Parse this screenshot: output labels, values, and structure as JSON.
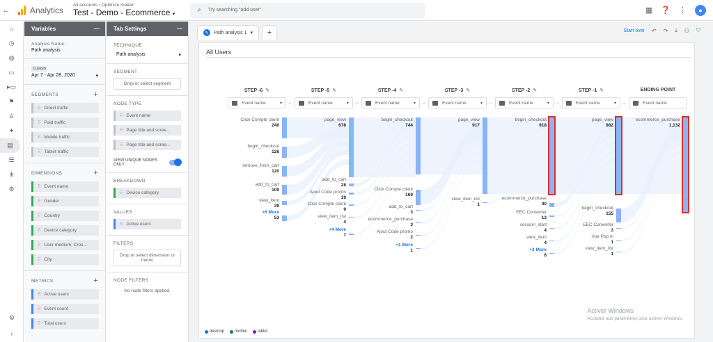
{
  "topbar": {
    "app_name": "Analytics",
    "breadcrumb": "All accounts › Optimize matter",
    "property": "Test - Demo - Ecommerce",
    "search_placeholder": "Try searching \"add user\"",
    "avatar_letter": "👤"
  },
  "variables": {
    "title": "Variables",
    "analysis_name_label": "Analysis Name:",
    "analysis_name": "Path analysis",
    "date_custom": "Custom",
    "date_range": "Apr 7 - Apr 28, 2020",
    "segments_title": "SEGMENTS",
    "segments": [
      "Direct traffic",
      "Paid traffic",
      "Mobile traffic",
      "Tablet traffic"
    ],
    "dimensions_title": "DIMENSIONS",
    "dimensions": [
      "Event name",
      "Gender",
      "Country",
      "Device category",
      "User medium: Cros...",
      "City"
    ],
    "metrics_title": "METRICS",
    "metrics": [
      "Active users",
      "Event count",
      "Total users"
    ]
  },
  "tab_settings": {
    "title": "Tab Settings",
    "technique_label": "TECHNIQUE",
    "technique": "Path analysis",
    "segment_label": "SEGMENT",
    "segment_drop": "Drop or select segment",
    "node_type_label": "NODE TYPE",
    "node_types": [
      "Event name",
      "Page title and scree...",
      "Page title and scree..."
    ],
    "view_unique_label": "VIEW UNIQUE NODES ONLY",
    "breakdown_label": "BREAKDOWN",
    "breakdown": "Device category",
    "values_label": "VALUES",
    "values": "Active users",
    "filters_label": "FILTERS",
    "filters_drop": "Drop or select dimension or metric",
    "node_filters_label": "NODE FILTERS",
    "node_filters_text": "No node filters applied."
  },
  "canvas": {
    "tab_label": "Path analysis 1",
    "start_over": "Start over",
    "sheet_title": "All Users",
    "dropdown_value": "Event name",
    "steps": [
      "STEP -6",
      "STEP -5",
      "STEP -4",
      "STEP -3",
      "STEP -2",
      "STEP -1",
      "ENDING POINT"
    ],
    "columns": [
      {
        "nodes": [
          {
            "name": "Click Compte client",
            "value": "240"
          },
          {
            "name": "begin_checkout",
            "value": "126"
          },
          {
            "name": "remove_from_cart",
            "value": "120"
          },
          {
            "name": "add_to_cart",
            "value": "109"
          },
          {
            "name": "view_item",
            "value": "39"
          },
          {
            "name": "+6 More",
            "value": "53",
            "more": true
          }
        ]
      },
      {
        "nodes": [
          {
            "name": "page_view",
            "value": "678"
          },
          {
            "name": "add_to_cart",
            "value": "28"
          },
          {
            "name": "Ajout Code promo",
            "value": "19"
          },
          {
            "name": "Click Compte client",
            "value": "9"
          },
          {
            "name": "view_item_list",
            "value": "4"
          },
          {
            "name": "+4 More",
            "value": "7",
            "more": true
          }
        ]
      },
      {
        "nodes": [
          {
            "name": "begin_checkout",
            "value": "744"
          },
          {
            "name": "Click Compte client",
            "value": "169"
          },
          {
            "name": "add_to_cart",
            "value": "3"
          },
          {
            "name": "ecommerce_purchase",
            "value": "3"
          },
          {
            "name": "Ajout Code promo",
            "value": "2"
          },
          {
            "name": "+1 More",
            "value": "1",
            "more": true
          }
        ]
      },
      {
        "nodes": [
          {
            "name": "page_view",
            "value": "917"
          },
          {
            "name": "view_item_list",
            "value": "1"
          }
        ]
      },
      {
        "nodes": [
          {
            "name": "begin_checkout",
            "value": "918"
          },
          {
            "name": "ecommerce_purchase",
            "value": "40"
          },
          {
            "name": "EEC Converter",
            "value": "13"
          },
          {
            "name": "session_start",
            "value": "4"
          },
          {
            "name": "view_item",
            "value": "4"
          },
          {
            "name": "+3 More",
            "value": "6",
            "more": true
          }
        ]
      },
      {
        "nodes": [
          {
            "name": "page_view",
            "value": "982"
          },
          {
            "name": "begin_checkout",
            "value": "155"
          },
          {
            "name": "EEC Converter",
            "value": "3"
          },
          {
            "name": "Vue Pop in",
            "value": "1"
          },
          {
            "name": "view_item_list",
            "value": "1"
          }
        ]
      },
      {
        "nodes": [
          {
            "name": "ecommerce_purchase",
            "value": "1,132"
          }
        ]
      }
    ],
    "legend": [
      {
        "label": "desktop",
        "color": "#1a73e8"
      },
      {
        "label": "mobile",
        "color": "#188038"
      },
      {
        "label": "tablet",
        "color": "#7b1fa2"
      }
    ],
    "watermark_title": "Activer Windows",
    "watermark_text": "Accédez aux paramètres pour activer Windows."
  },
  "colors": {
    "accent": "#1a73e8",
    "bar": "#8ab4f8",
    "highlight": "#d93025"
  }
}
